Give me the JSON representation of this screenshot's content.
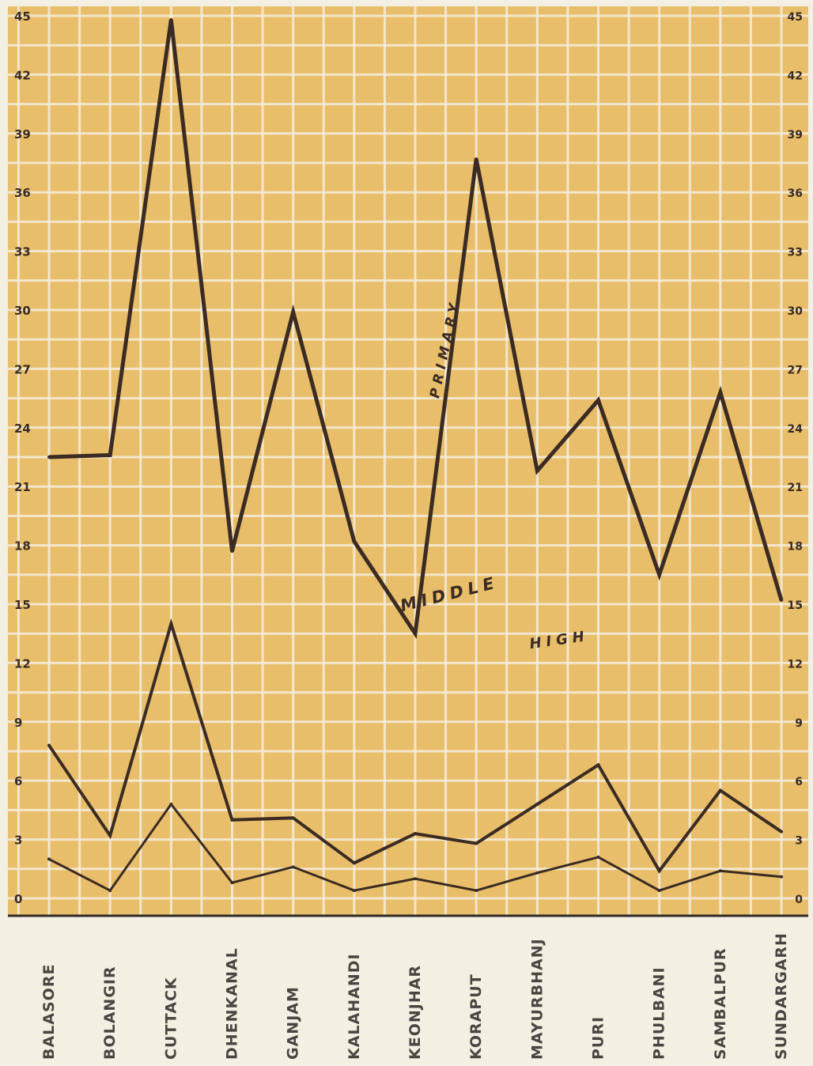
{
  "chart_data": {
    "type": "line",
    "title": "",
    "xlabel": "",
    "ylabel": "",
    "categories": [
      "BALASORE",
      "BOLANGIR",
      "CUTTACK",
      "DHENKANAL",
      "GANJAM",
      "KALAHANDI",
      "KEONJHAR",
      "KORAPUT",
      "MAYURBHANJ",
      "PURI",
      "PHULBANI",
      "SAMBALPUR",
      "SUNDARGARH"
    ],
    "y_ticks_left": [
      "0",
      "3",
      "6",
      "9",
      "12",
      "15",
      "18",
      "21",
      "24",
      "27",
      "30",
      "33",
      "36",
      "39",
      "42",
      "45"
    ],
    "y_ticks_right": [
      "0",
      "3",
      "6",
      "9",
      "12",
      "15",
      "18",
      "21",
      "24",
      "27",
      "30",
      "33",
      "36",
      "39",
      "42",
      "45"
    ],
    "ylim": [
      0,
      45
    ],
    "grid": true,
    "legend": "none",
    "series": [
      {
        "name": "PRIMARY",
        "values": [
          22.5,
          22.6,
          44.8,
          17.7,
          29.9,
          18.2,
          13.5,
          37.7,
          21.8,
          25.4,
          16.5,
          25.8,
          15.2
        ]
      },
      {
        "name": "MIDDLE",
        "values": [
          7.8,
          3.2,
          14.0,
          4.0,
          4.1,
          1.8,
          3.3,
          2.8,
          4.8,
          6.8,
          1.4,
          5.5,
          3.4
        ]
      },
      {
        "name": "HIGH",
        "values": [
          2.0,
          0.4,
          4.8,
          0.8,
          1.6,
          0.4,
          1.0,
          0.4,
          1.3,
          2.1,
          0.4,
          1.4,
          1.1
        ]
      }
    ],
    "colors": {
      "plot_bg": "#e8be6a",
      "grid": "#f6eede",
      "line": "#3b2b22",
      "axis": "#2e2a26",
      "tick_text": "#3a2c20",
      "category_text": "#4a4540"
    }
  }
}
